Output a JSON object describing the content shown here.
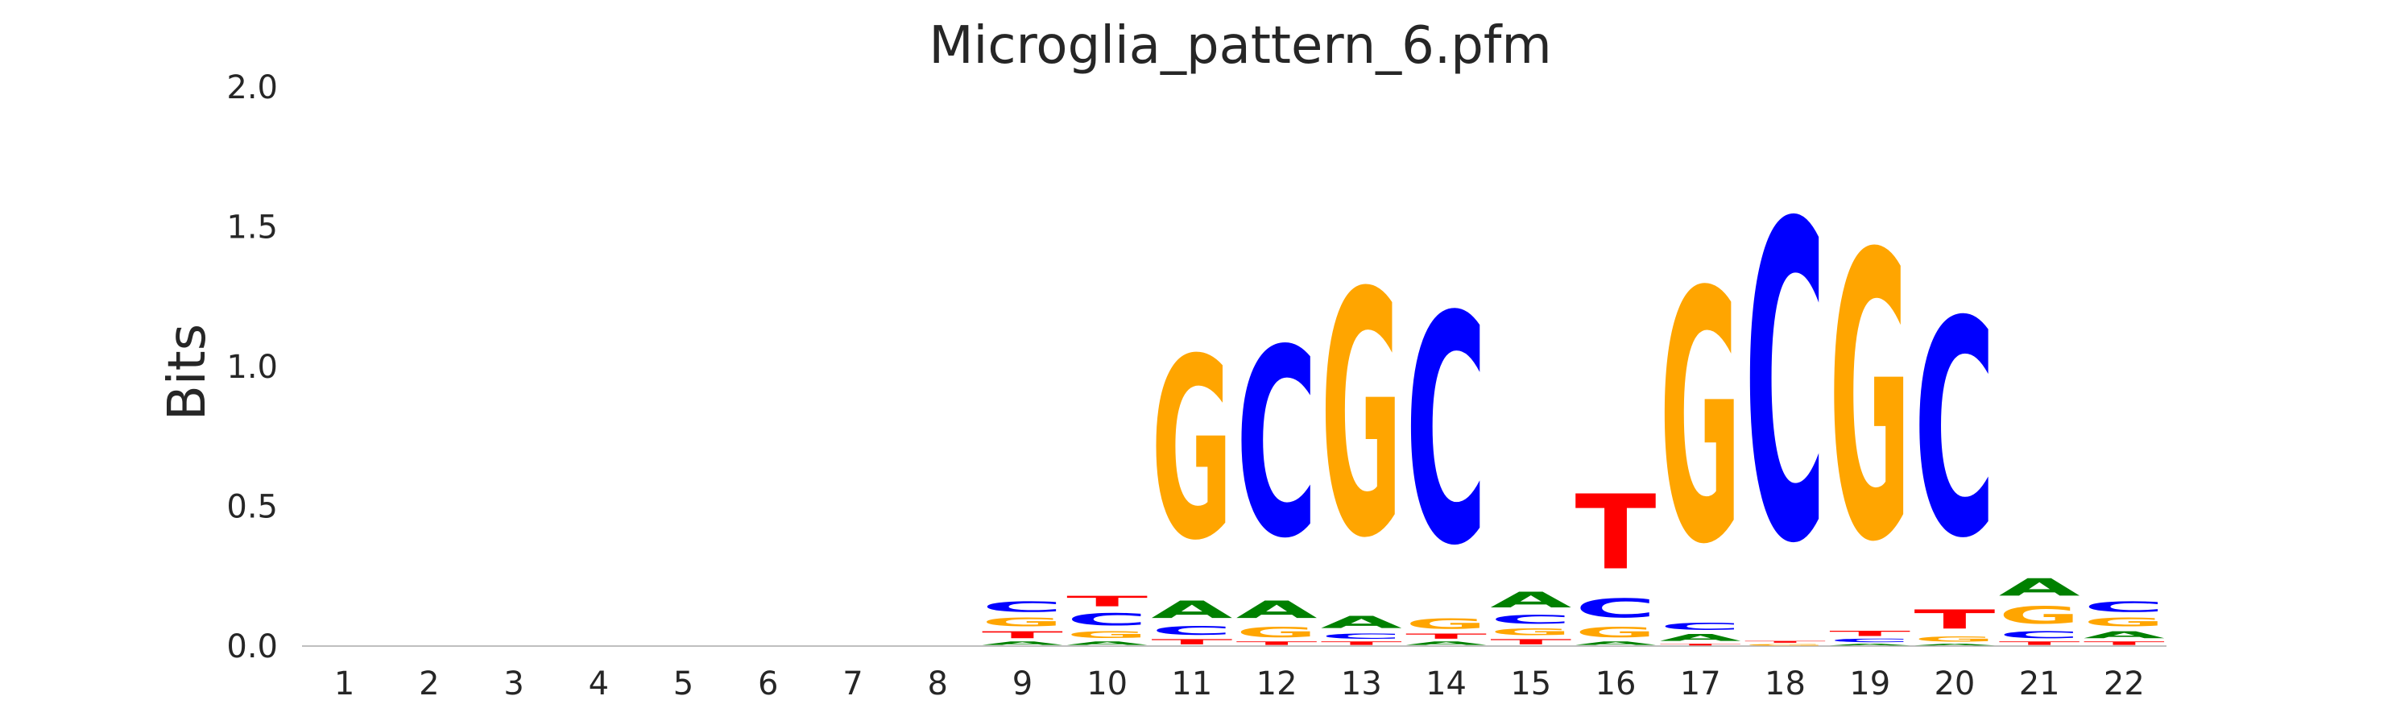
{
  "chart_data": {
    "type": "sequence_logo",
    "title": "Microglia_pattern_6.pfm",
    "xlabel": "",
    "ylabel": "Bits",
    "ylim": [
      0,
      2.0
    ],
    "yticks": [
      "0.0",
      "0.5",
      "1.0",
      "1.5",
      "2.0"
    ],
    "positions": [
      "1",
      "2",
      "3",
      "4",
      "5",
      "6",
      "7",
      "8",
      "9",
      "10",
      "11",
      "12",
      "13",
      "14",
      "15",
      "16",
      "17",
      "18",
      "19",
      "20",
      "21",
      "22"
    ],
    "colors": {
      "A": "#008000",
      "C": "#0000ff",
      "G": "#ffa500",
      "T": "#ff0000"
    },
    "stacks": [
      [],
      [],
      [],
      [],
      [],
      [],
      [],
      [],
      [
        {
          "base": "A",
          "height": 0.02
        },
        {
          "base": "T",
          "height": 0.04
        },
        {
          "base": "G",
          "height": 0.05
        },
        {
          "base": "C",
          "height": 0.06
        }
      ],
      [
        {
          "base": "A",
          "height": 0.02
        },
        {
          "base": "G",
          "height": 0.04
        },
        {
          "base": "C",
          "height": 0.07
        },
        {
          "base": "T",
          "height": 0.06
        }
      ],
      [
        {
          "base": "T",
          "height": 0.03
        },
        {
          "base": "C",
          "height": 0.05
        },
        {
          "base": "A",
          "height": 0.1
        },
        {
          "base": "G",
          "height": 1.04
        }
      ],
      [
        {
          "base": "T",
          "height": 0.02
        },
        {
          "base": "G",
          "height": 0.06
        },
        {
          "base": "A",
          "height": 0.1
        },
        {
          "base": "C",
          "height": 1.08
        }
      ],
      [
        {
          "base": "T",
          "height": 0.02
        },
        {
          "base": "C",
          "height": 0.03
        },
        {
          "base": "A",
          "height": 0.07
        },
        {
          "base": "G",
          "height": 1.4
        }
      ],
      [
        {
          "base": "A",
          "height": 0.02
        },
        {
          "base": "T",
          "height": 0.03
        },
        {
          "base": "G",
          "height": 0.06
        },
        {
          "base": "C",
          "height": 1.31
        }
      ],
      [
        {
          "base": "T",
          "height": 0.03
        },
        {
          "base": "G",
          "height": 0.04
        },
        {
          "base": "C",
          "height": 0.05
        },
        {
          "base": "A",
          "height": 0.09
        }
      ],
      [
        {
          "base": "A",
          "height": 0.02
        },
        {
          "base": "G",
          "height": 0.06
        },
        {
          "base": "C",
          "height": 0.11
        },
        {
          "base": "T",
          "height": 0.43
        }
      ],
      [
        {
          "base": "T",
          "height": 0.01
        },
        {
          "base": "A",
          "height": 0.04
        },
        {
          "base": "C",
          "height": 0.04
        },
        {
          "base": "G",
          "height": 1.44
        }
      ],
      [
        {
          "base": "G",
          "height": 0.01
        },
        {
          "base": "T",
          "height": 0.01
        },
        {
          "base": "C",
          "height": 1.82
        }
      ],
      [
        {
          "base": "A",
          "height": 0.01
        },
        {
          "base": "C",
          "height": 0.02
        },
        {
          "base": "T",
          "height": 0.03
        },
        {
          "base": "G",
          "height": 1.64
        }
      ],
      [
        {
          "base": "A",
          "height": 0.01
        },
        {
          "base": "G",
          "height": 0.03
        },
        {
          "base": "T",
          "height": 0.11
        },
        {
          "base": "C",
          "height": 1.24
        }
      ],
      [
        {
          "base": "T",
          "height": 0.02
        },
        {
          "base": "C",
          "height": 0.04
        },
        {
          "base": "G",
          "height": 0.1
        },
        {
          "base": "A",
          "height": 0.1
        }
      ],
      [
        {
          "base": "T",
          "height": 0.02
        },
        {
          "base": "A",
          "height": 0.04
        },
        {
          "base": "G",
          "height": 0.05
        },
        {
          "base": "C",
          "height": 0.06
        }
      ]
    ]
  }
}
